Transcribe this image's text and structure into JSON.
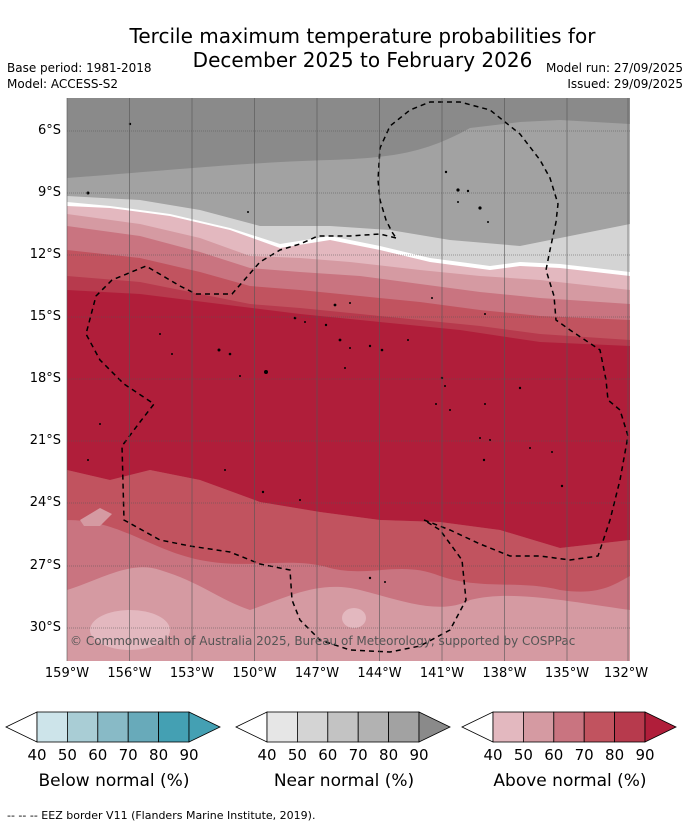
{
  "title_line1": "Tercile maximum temperature probabilities for",
  "title_line2": "December 2025 to February 2026",
  "base_period": "Base period: 1981-2018",
  "model": "Model: ACCESS-S2",
  "model_run": "Model run: 27/09/2025",
  "issued": "Issued: 29/09/2025",
  "lat_labels": [
    "6°S",
    "9°S",
    "12°S",
    "15°S",
    "18°S",
    "21°S",
    "24°S",
    "27°S",
    "30°S"
  ],
  "lon_labels": [
    "159°W",
    "156°W",
    "153°W",
    "150°W",
    "147°W",
    "144°W",
    "141°W",
    "138°W",
    "135°W",
    "132°W"
  ],
  "copyright": "© Commonwealth of Australia 2025, Bureau of Meteorology, supported by COSPPac",
  "legend": {
    "tick_values": [
      "40",
      "50",
      "60",
      "70",
      "80",
      "90"
    ],
    "below": {
      "title": "Below normal (%)",
      "colors": [
        "#cde4ea",
        "#a9cdd5",
        "#88bac6",
        "#68aaba",
        "#44a0b3"
      ]
    },
    "near": {
      "title": "Near normal (%)",
      "colors": [
        "#e6e6e6",
        "#d4d4d4",
        "#c3c3c3",
        "#b2b2b2",
        "#a2a2a2",
        "#8a8a8a"
      ]
    },
    "above": {
      "title": "Above normal (%)",
      "colors": [
        "#e3b8bf",
        "#d59aa2",
        "#c97480",
        "#c1535f",
        "#b73a4d",
        "#b01e3a"
      ]
    }
  },
  "footnote": "--  --  -- EEZ border V11 (Flanders Marine Institute, 2019)."
}
